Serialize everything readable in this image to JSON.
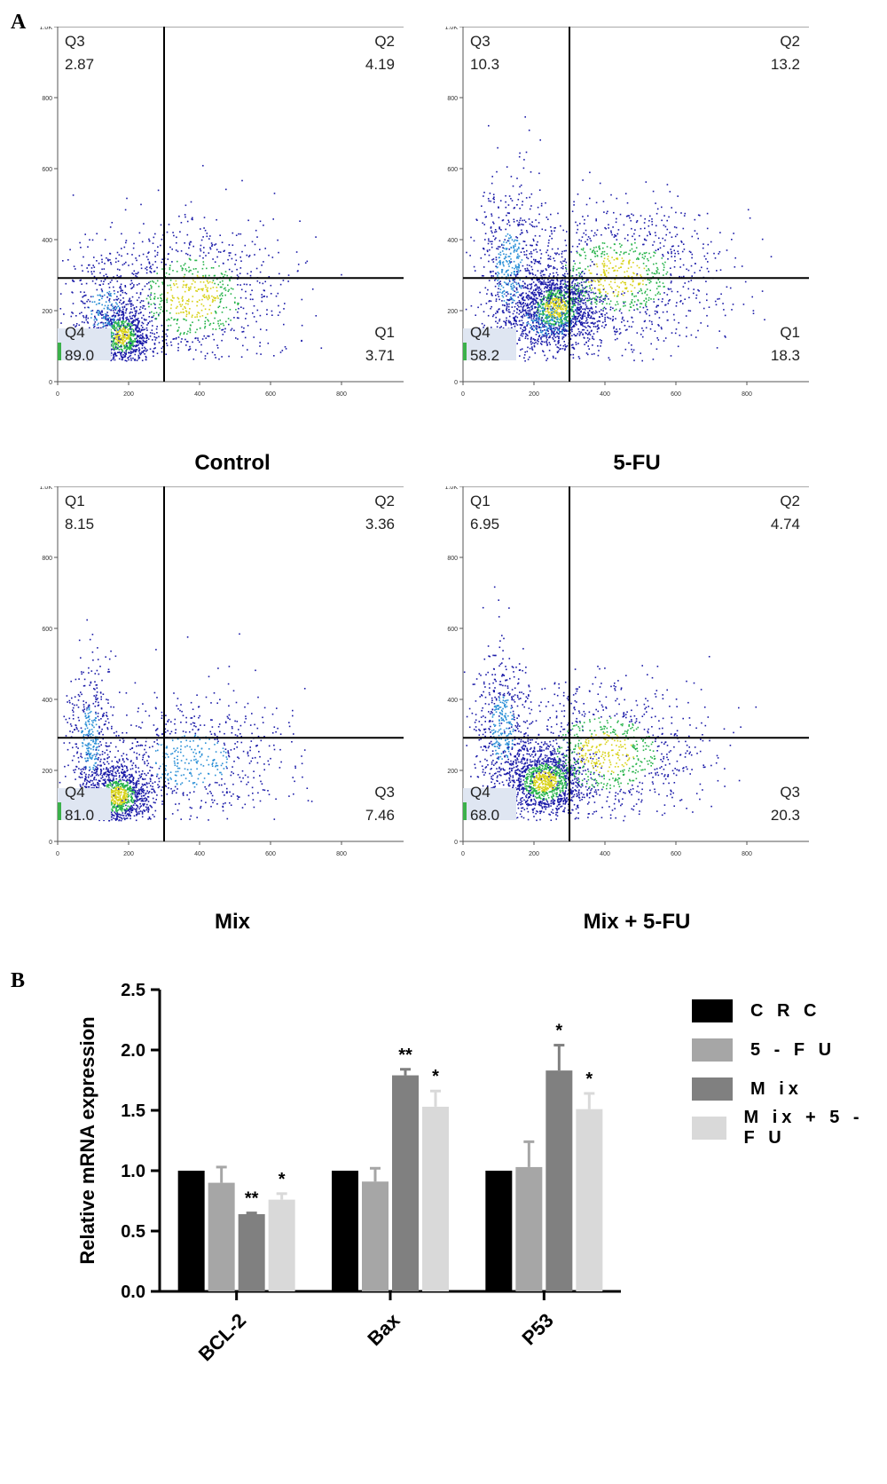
{
  "panel_a_label": "A",
  "panel_b_label": "B",
  "flow_plots": [
    {
      "caption": "Control",
      "quadrants": {
        "tl": {
          "name": "Q3",
          "value": "2.87"
        },
        "tr": {
          "name": "Q2",
          "value": "4.19"
        },
        "bl": {
          "name": "Q4",
          "value": "89.0"
        },
        "br": {
          "name": "Q1",
          "value": "3.71"
        }
      }
    },
    {
      "caption": "5-FU",
      "quadrants": {
        "tl": {
          "name": "Q3",
          "value": "10.3"
        },
        "tr": {
          "name": "Q2",
          "value": "13.2"
        },
        "bl": {
          "name": "Q4",
          "value": "58.2"
        },
        "br": {
          "name": "Q1",
          "value": "18.3"
        }
      }
    },
    {
      "caption": "Mix",
      "quadrants": {
        "tl": {
          "name": "Q1",
          "value": "8.15"
        },
        "tr": {
          "name": "Q2",
          "value": "3.36"
        },
        "bl": {
          "name": "Q4",
          "value": "81.0"
        },
        "br": {
          "name": "Q3",
          "value": "7.46"
        }
      }
    },
    {
      "caption": "Mix + 5-FU",
      "quadrants": {
        "tl": {
          "name": "Q1",
          "value": "6.95"
        },
        "tr": {
          "name": "Q2",
          "value": "4.74"
        },
        "bl": {
          "name": "Q4",
          "value": "68.0"
        },
        "br": {
          "name": "Q3",
          "value": "20.3"
        }
      }
    }
  ],
  "flow_axis_ticks": [
    "0",
    "200",
    "400",
    "600",
    "800",
    "1.0K"
  ],
  "chart_data": {
    "type": "bar",
    "categories": [
      "BCL-2",
      "Bax",
      "P53"
    ],
    "ylabel": "Relative mRNA expression",
    "ylim": [
      0,
      2.5
    ],
    "yticks": [
      "0.0",
      "0.5",
      "1.0",
      "1.5",
      "2.0",
      "2.5"
    ],
    "legend_position": "right",
    "series": [
      {
        "name": "C R C",
        "color": "#000000",
        "values": [
          1.0,
          1.0,
          1.0
        ],
        "errors": [
          0,
          0,
          0
        ],
        "sig": [
          "",
          "",
          ""
        ]
      },
      {
        "name": "5 - F U",
        "color": "#a6a6a6",
        "values": [
          0.9,
          0.91,
          1.03
        ],
        "errors": [
          0.13,
          0.11,
          0.21
        ],
        "sig": [
          "",
          "",
          ""
        ]
      },
      {
        "name": "M ix",
        "color": "#808080",
        "values": [
          0.64,
          1.79,
          1.83
        ],
        "errors": [
          0.01,
          0.05,
          0.21
        ],
        "sig": [
          "**",
          "**",
          "*"
        ]
      },
      {
        "name": "M ix + 5 - F U",
        "color": "#d9d9d9",
        "values": [
          0.76,
          1.53,
          1.51
        ],
        "errors": [
          0.05,
          0.13,
          0.13
        ],
        "sig": [
          "*",
          "*",
          "*"
        ]
      }
    ]
  }
}
